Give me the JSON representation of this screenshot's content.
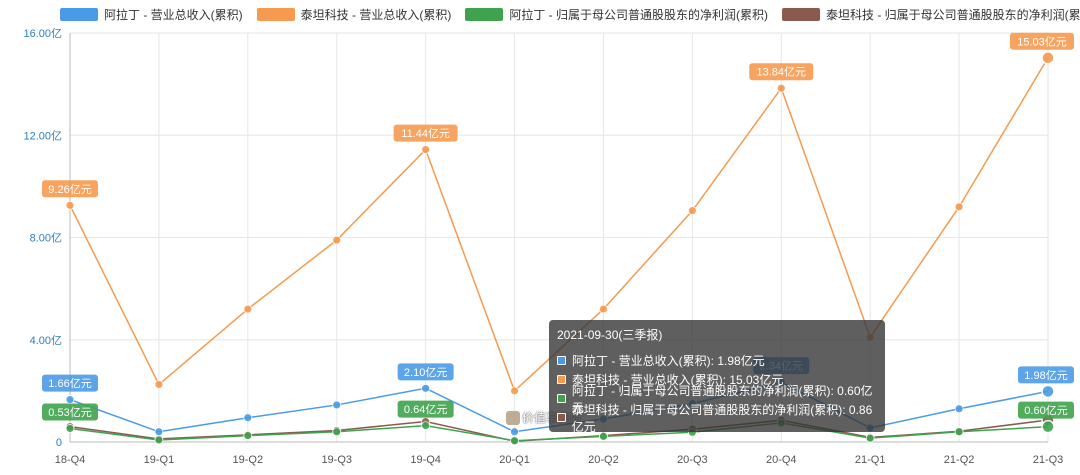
{
  "chart_data": {
    "type": "line",
    "categories": [
      "18-Q4",
      "19-Q1",
      "19-Q2",
      "19-Q3",
      "19-Q4",
      "20-Q1",
      "20-Q2",
      "20-Q3",
      "20-Q4",
      "21-Q1",
      "21-Q2",
      "21-Q3"
    ],
    "y_ticks": [
      "0",
      "4.00亿",
      "8.00亿",
      "12.00亿",
      "16.00亿"
    ],
    "ylim": [
      0,
      16
    ],
    "grid": true,
    "legend_position": "top",
    "series": [
      {
        "name": "阿拉丁 - 营业总收入(累积)",
        "color": "#4a9be6",
        "values": [
          1.66,
          0.4,
          0.95,
          1.45,
          2.1,
          0.4,
          0.9,
          1.5,
          2.34,
          0.55,
          1.3,
          1.98
        ]
      },
      {
        "name": "泰坦科技 - 营业总收入(累积)",
        "color": "#f59a4f",
        "values": [
          9.26,
          2.25,
          5.2,
          7.9,
          11.44,
          2.0,
          5.2,
          9.05,
          13.84,
          4.1,
          9.2,
          15.03
        ]
      },
      {
        "name": "阿拉丁 - 归属于母公司普通股股东的净利润(累积)",
        "color": "#3fa34d",
        "values": [
          0.53,
          0.08,
          0.25,
          0.4,
          0.64,
          0.05,
          0.22,
          0.38,
          0.75,
          0.15,
          0.4,
          0.6
        ]
      },
      {
        "name": "泰坦科技 - 归属于母公司普通股股东的净利润(累积)",
        "color": "#8b5a4f",
        "values": [
          0.6,
          0.12,
          0.28,
          0.45,
          0.8,
          0.03,
          0.25,
          0.5,
          0.85,
          0.18,
          0.42,
          0.86
        ]
      }
    ],
    "data_labels": [
      {
        "series": 0,
        "index": 0,
        "text": "1.66亿元"
      },
      {
        "series": 0,
        "index": 4,
        "text": "2.10亿元"
      },
      {
        "series": 0,
        "index": 8,
        "text": "2.34亿元"
      },
      {
        "series": 0,
        "index": 11,
        "text": "1.98亿元"
      },
      {
        "series": 1,
        "index": 0,
        "text": "9.26亿元"
      },
      {
        "series": 1,
        "index": 4,
        "text": "11.44亿元"
      },
      {
        "series": 1,
        "index": 8,
        "text": "13.84亿元"
      },
      {
        "series": 1,
        "index": 11,
        "text": "15.03亿元"
      },
      {
        "series": 2,
        "index": 0,
        "text": "0.53亿元"
      },
      {
        "series": 2,
        "index": 4,
        "text": "0.64亿元"
      },
      {
        "series": 2,
        "index": 11,
        "text": "0.60亿元"
      }
    ]
  },
  "tooltip": {
    "title": "2021-09-30(三季报)",
    "rows": [
      {
        "text": "阿拉丁 - 营业总收入(累积): 1.98亿元",
        "color": "#4a9be6"
      },
      {
        "text": "泰坦科技 - 营业总收入(累积): 15.03亿元",
        "color": "#f59a4f"
      },
      {
        "text": "阿拉丁 - 归属于母公司普通股股东的净利润(累积): 0.60亿元",
        "color": "#3fa34d"
      },
      {
        "text": "泰坦科技 - 归属于母公司普通股股东的净利润(累积): 0.86亿元",
        "color": "#8b5a4f"
      }
    ]
  },
  "watermark": {
    "text": "价值事务所"
  }
}
